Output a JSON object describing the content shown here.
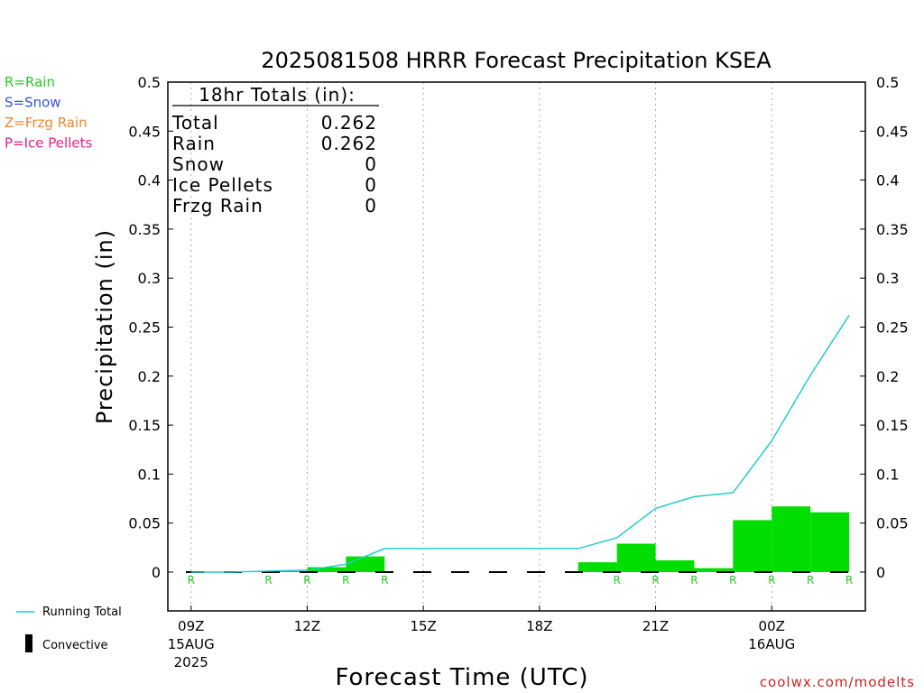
{
  "chart_data": {
    "type": "bar",
    "title": "2025081508 HRRR Forecast Precipitation KSEA",
    "xlabel": "Forecast Time (UTC)",
    "ylabel": "Precipitation (in)",
    "ylim": [
      0,
      0.5
    ],
    "y_ticks": [
      "0",
      "0.05",
      "0.1",
      "0.15",
      "0.2",
      "0.25",
      "0.3",
      "0.35",
      "0.4",
      "0.45",
      "0.5"
    ],
    "x_ticks": [
      {
        "label": "09Z",
        "sub1": "15AUG",
        "sub2": "2025",
        "hour": 9
      },
      {
        "label": "12Z",
        "sub1": "",
        "sub2": "",
        "hour": 12
      },
      {
        "label": "15Z",
        "sub1": "",
        "sub2": "",
        "hour": 15
      },
      {
        "label": "18Z",
        "sub1": "",
        "sub2": "",
        "hour": 18
      },
      {
        "label": "21Z",
        "sub1": "",
        "sub2": "",
        "hour": 21
      },
      {
        "label": "00Z",
        "sub1": "16AUG",
        "sub2": "",
        "hour": 24
      }
    ],
    "hours": [
      9,
      10,
      11,
      12,
      13,
      14,
      15,
      16,
      17,
      18,
      19,
      20,
      21,
      22,
      23,
      24,
      25,
      26
    ],
    "hourly_precip": [
      0,
      0,
      0.0005,
      0.001,
      0.005,
      0.016,
      0,
      0,
      0,
      0,
      0,
      0.01,
      0.029,
      0.012,
      0.004,
      0.053,
      0.067,
      0.061
    ],
    "running_total": [
      0,
      0,
      0.001,
      0.002,
      0.008,
      0.024,
      0.024,
      0.024,
      0.024,
      0.024,
      0.024,
      0.035,
      0.065,
      0.077,
      0.081,
      0.134,
      0.201,
      0.262
    ],
    "precip_type_markers": [
      {
        "hour": 9,
        "type": "R"
      },
      {
        "hour": 11,
        "type": "R"
      },
      {
        "hour": 12,
        "type": "R"
      },
      {
        "hour": 13,
        "type": "R"
      },
      {
        "hour": 14,
        "type": "R"
      },
      {
        "hour": 20,
        "type": "R"
      },
      {
        "hour": 21,
        "type": "R"
      },
      {
        "hour": 22,
        "type": "R"
      },
      {
        "hour": 23,
        "type": "R"
      },
      {
        "hour": 24,
        "type": "R"
      },
      {
        "hour": 25,
        "type": "R"
      },
      {
        "hour": 26,
        "type": "R"
      }
    ],
    "totals_box": {
      "heading": "18hr Totals (in):",
      "rows": [
        {
          "label": "Total",
          "value": "0.262"
        },
        {
          "label": "Rain",
          "value": "0.262"
        },
        {
          "label": "Snow",
          "value": "0"
        },
        {
          "label": "Ice Pellets",
          "value": "0"
        },
        {
          "label": "Frzg Rain",
          "value": "0"
        }
      ]
    },
    "type_legend": [
      {
        "text": "R=Rain",
        "color": "#22cc22"
      },
      {
        "text": "S=Snow",
        "color": "#3355dd"
      },
      {
        "text": "Z=Frzg Rain",
        "color": "#ee8833"
      },
      {
        "text": "P=Ice Pellets",
        "color": "#dd2288"
      }
    ],
    "series_legend": {
      "running_total": "Running Total",
      "convective": "Convective"
    },
    "colors": {
      "bars": "#00dd00",
      "running_total": "#22cccc",
      "marker": "#22cc22",
      "credit": "#cc2222"
    },
    "credit": "coolwx.com/modelts"
  }
}
